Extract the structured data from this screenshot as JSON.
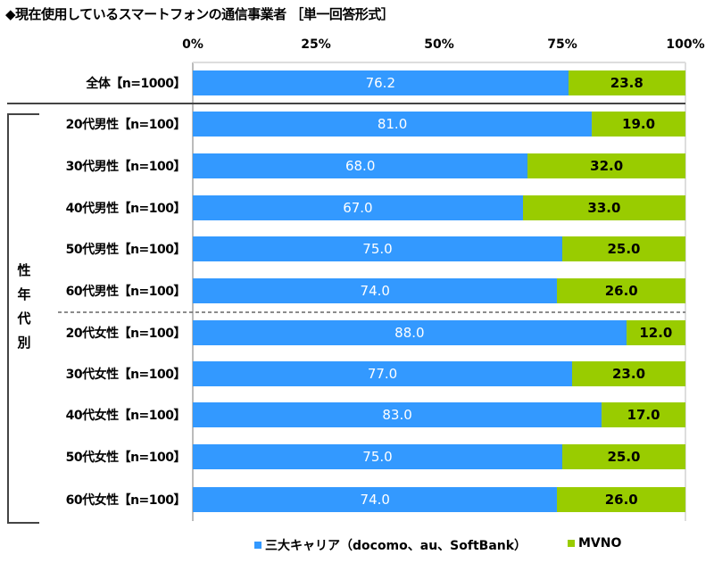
{
  "title": "◆現在使用しているスマートフォンの通信事業者 ［単一回答形式］",
  "chart_data": {
    "type": "bar",
    "stacked": true,
    "orientation": "horizontal",
    "title": "◆現在使用しているスマートフォンの通信事業者 ［単一回答形式］",
    "group_label": "性年代別",
    "xlim": [
      0,
      100
    ],
    "x_ticks": [
      "0%",
      "25%",
      "50%",
      "75%",
      "100%"
    ],
    "categories": [
      "全体【n=1000】",
      "20代男性【n=100】",
      "30代男性【n=100】",
      "40代男性【n=100】",
      "50代男性【n=100】",
      "60代男性【n=100】",
      "20代女性【n=100】",
      "30代女性【n=100】",
      "40代女性【n=100】",
      "50代女性【n=100】",
      "60代女性【n=100】"
    ],
    "series": [
      {
        "name": "三大キャリア（docomo、au、SoftBank）",
        "color": "#3399ff",
        "values": [
          76.2,
          81.0,
          68.0,
          67.0,
          75.0,
          74.0,
          88.0,
          77.0,
          83.0,
          75.0,
          74.0
        ]
      },
      {
        "name": "MVNO",
        "color": "#99cc00",
        "values": [
          23.8,
          19.0,
          32.0,
          33.0,
          25.0,
          26.0,
          12.0,
          23.0,
          17.0,
          25.0,
          26.0
        ]
      }
    ],
    "legend_position": "bottom"
  }
}
